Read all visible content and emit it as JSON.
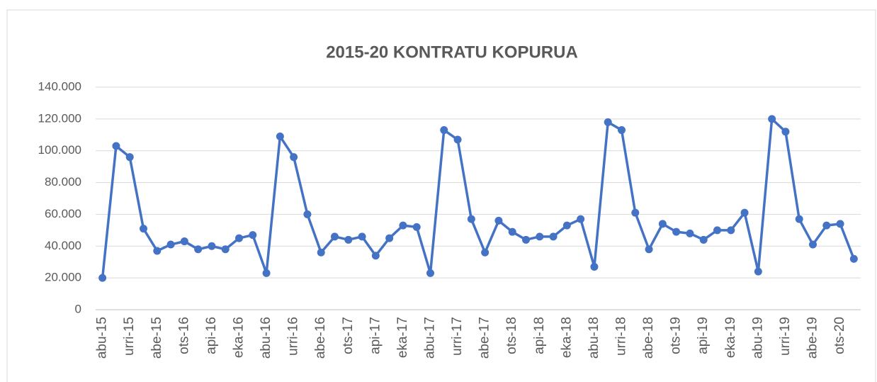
{
  "chart_data": {
    "type": "line",
    "title": "2015-20 KONTRATU KOPURUA",
    "categories": [
      "abu-15",
      null,
      "urri-15",
      null,
      "abe-15",
      null,
      "ots-16",
      null,
      "api-16",
      null,
      "eka-16",
      null,
      "abu-16",
      null,
      "urri-16",
      null,
      "abe-16",
      null,
      "ots-17",
      null,
      "api-17",
      null,
      "eka-17",
      null,
      "abu-17",
      null,
      "urri-17",
      null,
      "abe-17",
      null,
      "ots-18",
      null,
      "api-18",
      null,
      "eka-18",
      null,
      "abu-18",
      null,
      "urri-18",
      null,
      "abe-18",
      null,
      "ots-19",
      null,
      "api-19",
      null,
      "eka-19",
      null,
      "abu-19",
      null,
      "urri-19",
      null,
      "abe-19",
      null,
      "ots-20",
      null
    ],
    "series": [
      {
        "color": "#4472c4",
        "values": [
          20000,
          103000,
          96000,
          51000,
          37000,
          41000,
          43000,
          38000,
          40000,
          38000,
          45000,
          47000,
          23000,
          109000,
          96000,
          60000,
          36000,
          46000,
          44000,
          46000,
          34000,
          45000,
          53000,
          52000,
          23000,
          113000,
          107000,
          57000,
          36000,
          56000,
          49000,
          44000,
          46000,
          46000,
          53000,
          57000,
          27000,
          118000,
          113000,
          61000,
          38000,
          54000,
          49000,
          48000,
          44000,
          50000,
          50000,
          61000,
          24000,
          120000,
          112000,
          57000,
          41000,
          53000,
          54000,
          32000
        ]
      }
    ],
    "ylim": [
      0,
      140000
    ],
    "yticks": [
      0,
      {
        "value": 20000,
        "label": "20.000"
      },
      {
        "value": 40000,
        "label": "40.000"
      },
      {
        "value": 60000,
        "label": "60.000"
      },
      {
        "value": 80000,
        "label": "80.000"
      },
      {
        "value": 100000,
        "label": "100.000"
      },
      {
        "value": 120000,
        "label": "120.000"
      },
      {
        "value": 140000,
        "label": "140.000"
      }
    ],
    "grid": true
  }
}
